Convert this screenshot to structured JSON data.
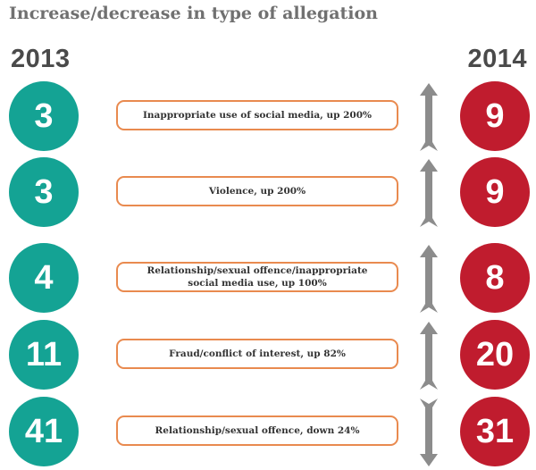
{
  "title": "Increase/decrease in type of allegation",
  "year_left": "2013",
  "year_right": "2014",
  "colors": {
    "left_circle": "#14a394",
    "right_circle": "#c01c2e",
    "label_border": "#e98a4f",
    "arrow": "#8c8c8c"
  },
  "rows": [
    {
      "value_2013": "3",
      "value_2014": "9",
      "label": "Inappropriate use of social media, up 200%",
      "direction": "up",
      "arrow_icon": "up-arrow-icon"
    },
    {
      "value_2013": "3",
      "value_2014": "9",
      "label": "Violence, up 200%",
      "direction": "up",
      "arrow_icon": "up-arrow-icon"
    },
    {
      "value_2013": "4",
      "value_2014": "8",
      "label": "Relationship/sexual offence/inappropriate social media use, up 100%",
      "direction": "up",
      "arrow_icon": "up-arrow-icon"
    },
    {
      "value_2013": "11",
      "value_2014": "20",
      "label": "Fraud/conflict of interest, up 82%",
      "direction": "up",
      "arrow_icon": "up-arrow-icon"
    },
    {
      "value_2013": "41",
      "value_2014": "31",
      "label": "Relationship/sexual offence, down 24%",
      "direction": "down",
      "arrow_icon": "down-arrow-icon"
    }
  ]
}
